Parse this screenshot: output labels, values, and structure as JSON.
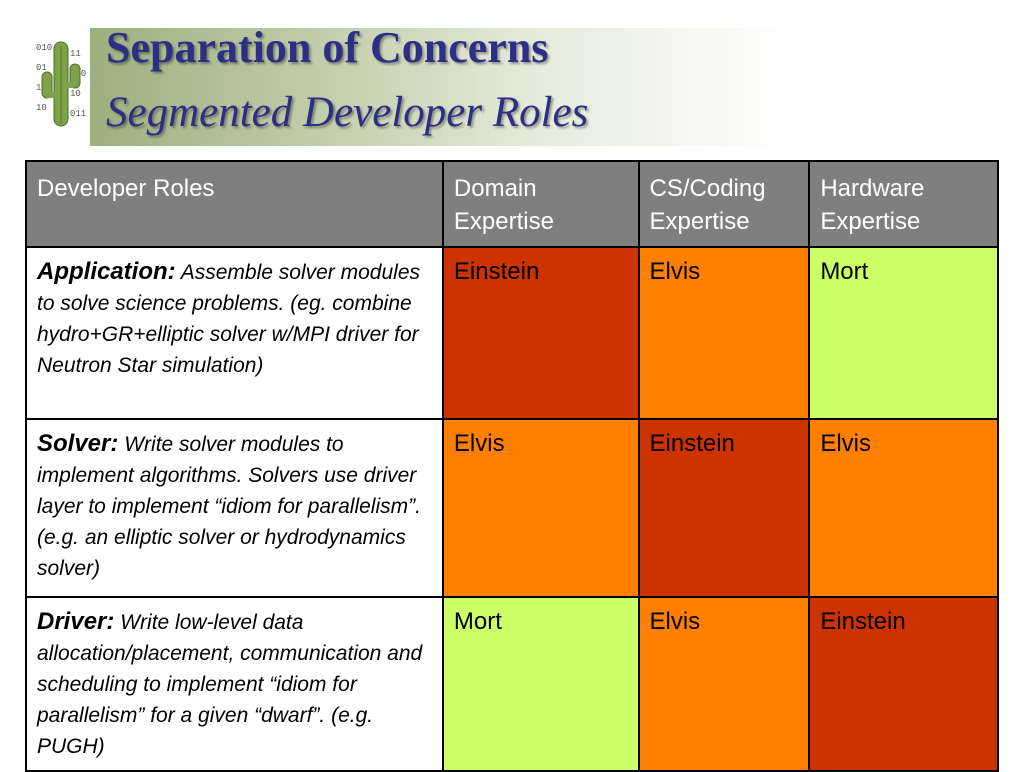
{
  "slide": {
    "title": "Separation of Concerns",
    "subtitle": "Segmented Developer Roles",
    "logo_icon": "cactus-binary-icon"
  },
  "table": {
    "headers": [
      "Developer Roles",
      "Domain Expertise",
      "CS/Coding Expertise",
      "Hardware Expertise"
    ],
    "rows": [
      {
        "role": "Application",
        "role_suffix": ":",
        "description": " Assemble solver modules to solve science problems. (eg. combine hydro+GR+elliptic solver w/MPI driver for Neutron Star simulation)",
        "cells": [
          "Einstein",
          "Elvis",
          "Mort"
        ]
      },
      {
        "role": "Solver",
        "role_suffix": ":",
        "description": " Write solver modules to implement algorithms. Solvers use driver layer to implement “idiom for parallelism”. (e.g. an elliptic solver or hydrodynamics solver)",
        "cells": [
          "Elvis",
          "Einstein",
          "Elvis"
        ]
      },
      {
        "role": "Driver",
        "role_suffix": ":",
        "description": " Write low-level data allocation/placement, communication and scheduling to implement “idiom for parallelism” for a given “dwarf”. (e.g. PUGH)",
        "cells": [
          "Mort",
          "Elvis",
          "Einstein"
        ]
      }
    ]
  },
  "colors": {
    "Einstein": "#cc3300",
    "Elvis": "#ff7f00",
    "Mort": "#ccff66",
    "header_bg": "#7f7f7f",
    "title": "#2b2f86"
  }
}
